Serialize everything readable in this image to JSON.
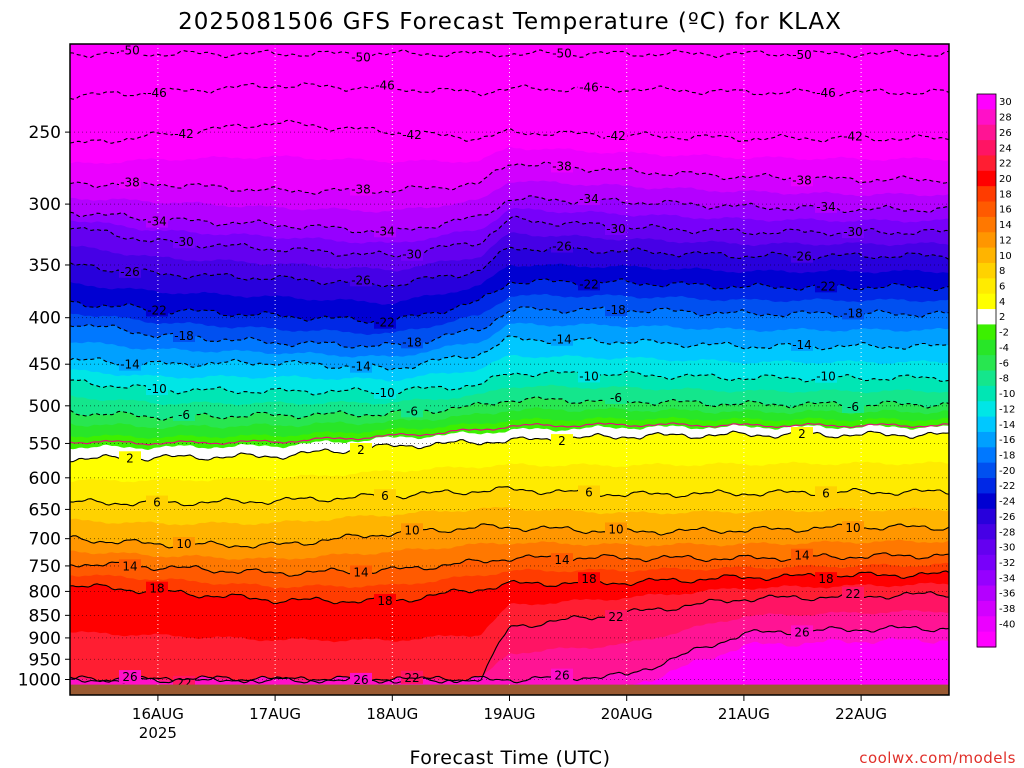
{
  "title": "2025081506 GFS Forecast Temperature (ºC) for KLAX",
  "credit": "coolwx.com/models",
  "chart_data": {
    "type": "heatmap",
    "title": "2025081506 GFS Forecast Temperature (ºC) for KLAX",
    "xlabel": "Forecast Time (UTC)",
    "ylabel": "",
    "y_scale": "log-pressure (hPa), inverted",
    "ylim": [
      1040,
      200
    ],
    "xlim": [
      "2025-08-15T06",
      "2025-08-22T18"
    ],
    "grid": true,
    "x_ticks": [
      {
        "label": "16AUG",
        "sublabel": "2025",
        "time": "2025-08-16T00"
      },
      {
        "label": "17AUG",
        "sublabel": "",
        "time": "2025-08-17T00"
      },
      {
        "label": "18AUG",
        "sublabel": "",
        "time": "2025-08-18T00"
      },
      {
        "label": "19AUG",
        "sublabel": "",
        "time": "2025-08-19T00"
      },
      {
        "label": "20AUG",
        "sublabel": "",
        "time": "2025-08-20T00"
      },
      {
        "label": "21AUG",
        "sublabel": "",
        "time": "2025-08-21T00"
      },
      {
        "label": "22AUG",
        "sublabel": "",
        "time": "2025-08-22T00"
      }
    ],
    "y_ticks": [
      250,
      300,
      350,
      400,
      450,
      500,
      550,
      600,
      650,
      700,
      750,
      800,
      850,
      900,
      950,
      1000
    ],
    "colorbar": {
      "labels": [
        "30",
        "28",
        "26",
        "24",
        "22",
        "20",
        "18",
        "16",
        "14",
        "12",
        "10",
        "8",
        "6",
        "4",
        "2",
        "-2",
        "-4",
        "-6",
        "-8",
        "-10",
        "-12",
        "-14",
        "-16",
        "-18",
        "-20",
        "-22",
        "-24",
        "-26",
        "-28",
        "-30",
        "-32",
        "-34",
        "-36",
        "-38",
        "-40"
      ],
      "colors": [
        "#ff00ff",
        "#ff10c8",
        "#ff1494",
        "#ff1464",
        "#ff1e32",
        "#ff0000",
        "#ff3c00",
        "#ff5a00",
        "#ff7800",
        "#ff9600",
        "#ffb400",
        "#ffd200",
        "#ffeb00",
        "#ffff00",
        "#ffffff",
        "#3cf000",
        "#28e628",
        "#28e650",
        "#14e68c",
        "#00e6b4",
        "#00e6e6",
        "#00c8ff",
        "#00a0ff",
        "#0078ff",
        "#0050f0",
        "#0028e6",
        "#0000d2",
        "#2800dc",
        "#4600e6",
        "#6400f0",
        "#7800fa",
        "#9600ff",
        "#b400ff",
        "#d200ff",
        "#eb00ff",
        "#ff00ff"
      ]
    },
    "contours_approx_pressure_hPa": {
      "x_times": [
        "2025-08-15T06",
        "2025-08-16T00",
        "2025-08-17T00",
        "2025-08-18T00",
        "2025-08-18T18",
        "2025-08-19T00",
        "2025-08-20T00",
        "2025-08-21T00",
        "2025-08-22T00",
        "2025-08-22T18"
      ],
      "levels": [
        {
          "value": -50,
          "p": [
            205,
            205,
            205,
            205,
            205,
            205,
            205,
            205,
            205,
            205
          ]
        },
        {
          "value": -46,
          "p": [
            228,
            226,
            222,
            224,
            226,
            224,
            224,
            226,
            226,
            226
          ]
        },
        {
          "value": -42,
          "p": [
            258,
            252,
            244,
            250,
            254,
            250,
            252,
            254,
            254,
            254
          ]
        },
        {
          "value": -38,
          "p": [
            285,
            285,
            290,
            290,
            285,
            270,
            276,
            280,
            282,
            282
          ]
        },
        {
          "value": -34,
          "p": [
            306,
            312,
            316,
            322,
            310,
            296,
            298,
            302,
            304,
            304
          ]
        },
        {
          "value": -30,
          "p": [
            318,
            330,
            336,
            342,
            330,
            312,
            318,
            322,
            322,
            322
          ]
        },
        {
          "value": -26,
          "p": [
            350,
            358,
            362,
            368,
            355,
            335,
            338,
            342,
            342,
            342
          ]
        },
        {
          "value": -22,
          "p": [
            385,
            392,
            398,
            404,
            384,
            365,
            366,
            370,
            370,
            370
          ]
        },
        {
          "value": -18,
          "p": [
            405,
            418,
            426,
            430,
            412,
            392,
            392,
            396,
            396,
            396
          ]
        },
        {
          "value": -14,
          "p": [
            445,
            450,
            448,
            455,
            438,
            422,
            425,
            430,
            430,
            430
          ]
        },
        {
          "value": -10,
          "p": [
            470,
            480,
            482,
            482,
            474,
            460,
            462,
            466,
            466,
            466
          ]
        },
        {
          "value": -6,
          "p": [
            508,
            514,
            512,
            510,
            500,
            492,
            494,
            498,
            498,
            498
          ]
        },
        {
          "value": 2,
          "p": [
            572,
            570,
            568,
            554,
            548,
            546,
            540,
            538,
            538,
            538
          ]
        },
        {
          "value": 6,
          "p": [
            638,
            640,
            636,
            628,
            620,
            618,
            626,
            624,
            622,
            622
          ]
        },
        {
          "value": 10,
          "p": [
            700,
            710,
            712,
            690,
            680,
            680,
            688,
            685,
            680,
            680
          ]
        },
        {
          "value": 14,
          "p": [
            745,
            752,
            764,
            758,
            742,
            735,
            735,
            736,
            732,
            730
          ]
        },
        {
          "value": 18,
          "p": [
            788,
            800,
            818,
            820,
            795,
            785,
            782,
            772,
            768,
            766
          ]
        },
        {
          "value": 22,
          "p": [
            1000,
            1000,
            1000,
            1000,
            1000,
            875,
            845,
            815,
            810,
            805
          ]
        },
        {
          "value": 26,
          "p": [
            1000,
            1000,
            1000,
            1000,
            1000,
            1000,
            990,
            890,
            880,
            878
          ]
        }
      ]
    },
    "contour_labels": [
      "-50",
      "-46",
      "-42",
      "-38",
      "-34",
      "-30",
      "-26",
      "-22",
      "-18",
      "-14",
      "-10",
      "-6",
      "2",
      "6",
      "10",
      "14",
      "18",
      "22",
      "26"
    ]
  }
}
